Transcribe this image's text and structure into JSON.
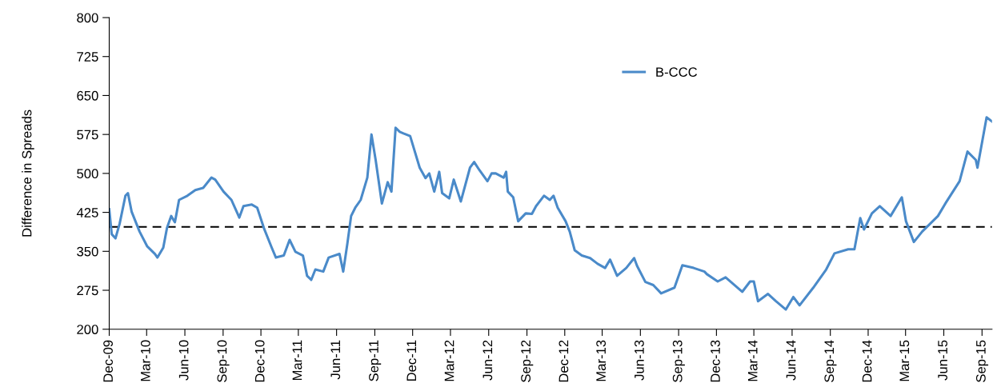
{
  "chart_data": {
    "type": "line",
    "ylabel": "Difference in Spreads",
    "legend": "top right",
    "grid": false,
    "marker": "none",
    "line_style": "solid",
    "ylim": [
      200,
      800
    ],
    "yticks": [
      200,
      275,
      350,
      425,
      500,
      575,
      650,
      725,
      800
    ],
    "xlim": [
      "2009-12-01",
      "2015-09-25"
    ],
    "xticks": [
      {
        "value": "2009-12-01",
        "label": "Dec-09"
      },
      {
        "value": "2010-03-01",
        "label": "Mar-10"
      },
      {
        "value": "2010-06-01",
        "label": "Jun-10"
      },
      {
        "value": "2010-09-01",
        "label": "Sep-10"
      },
      {
        "value": "2010-12-01",
        "label": "Dec-10"
      },
      {
        "value": "2011-03-01",
        "label": "Mar-11"
      },
      {
        "value": "2011-06-01",
        "label": "Jun-11"
      },
      {
        "value": "2011-09-01",
        "label": "Sep-11"
      },
      {
        "value": "2011-12-01",
        "label": "Dec-11"
      },
      {
        "value": "2012-03-01",
        "label": "Mar-12"
      },
      {
        "value": "2012-06-01",
        "label": "Jun-12"
      },
      {
        "value": "2012-09-01",
        "label": "Sep-12"
      },
      {
        "value": "2012-12-01",
        "label": "Dec-12"
      },
      {
        "value": "2013-03-01",
        "label": "Mar-13"
      },
      {
        "value": "2013-06-01",
        "label": "Jun-13"
      },
      {
        "value": "2013-09-01",
        "label": "Sep-13"
      },
      {
        "value": "2013-12-01",
        "label": "Dec-13"
      },
      {
        "value": "2014-03-01",
        "label": "Mar-14"
      },
      {
        "value": "2014-06-01",
        "label": "Jun-14"
      },
      {
        "value": "2014-09-01",
        "label": "Sep-14"
      },
      {
        "value": "2014-12-01",
        "label": "Dec-14"
      },
      {
        "value": "2015-03-01",
        "label": "Mar-15"
      },
      {
        "value": "2015-06-01",
        "label": "Jun-15"
      },
      {
        "value": "2015-09-01",
        "label": "Sep-15"
      }
    ],
    "ref_lines": [
      {
        "axis": "y",
        "value": 397,
        "label": null,
        "color": "#000000",
        "line_style": "dashed"
      }
    ],
    "series": [
      {
        "name": "B-CCC",
        "color": "#4a8ac9",
        "x": [
          "2009-12-01",
          "2009-12-07",
          "2009-12-16",
          "2009-12-26",
          "2010-01-09",
          "2010-01-15",
          "2010-01-24",
          "2010-02-12",
          "2010-03-02",
          "2010-03-21",
          "2010-03-27",
          "2010-04-10",
          "2010-04-19",
          "2010-04-29",
          "2010-05-08",
          "2010-05-18",
          "2010-06-07",
          "2010-06-26",
          "2010-07-15",
          "2010-08-04",
          "2010-08-13",
          "2010-09-02",
          "2010-09-21",
          "2010-10-10",
          "2010-10-20",
          "2010-11-09",
          "2010-11-22",
          "2010-12-08",
          "2010-12-27",
          "2011-01-06",
          "2011-01-25",
          "2011-02-08",
          "2011-02-22",
          "2011-03-12",
          "2011-03-22",
          "2011-04-01",
          "2011-04-11",
          "2011-04-30",
          "2011-05-13",
          "2011-06-08",
          "2011-06-17",
          "2011-06-27",
          "2011-07-06",
          "2011-07-16",
          "2011-07-29",
          "2011-08-14",
          "2011-08-24",
          "2011-09-03",
          "2011-09-18",
          "2011-10-02",
          "2011-10-11",
          "2011-10-21",
          "2011-10-31",
          "2011-11-09",
          "2011-11-25",
          "2011-12-18",
          "2012-01-01",
          "2012-01-10",
          "2012-01-22",
          "2012-02-03",
          "2012-02-10",
          "2012-02-27",
          "2012-03-09",
          "2012-03-26",
          "2012-04-17",
          "2012-04-27",
          "2012-05-10",
          "2012-05-29",
          "2012-06-08",
          "2012-06-18",
          "2012-07-07",
          "2012-07-13",
          "2012-07-17",
          "2012-07-30",
          "2012-08-11",
          "2012-08-29",
          "2012-09-13",
          "2012-09-23",
          "2012-10-12",
          "2012-10-26",
          "2012-11-04",
          "2012-11-14",
          "2012-12-03",
          "2012-12-13",
          "2012-12-25",
          "2013-01-11",
          "2013-01-31",
          "2013-02-18",
          "2013-03-08",
          "2013-03-20",
          "2013-04-06",
          "2013-04-28",
          "2013-05-17",
          "2013-05-24",
          "2013-06-13",
          "2013-07-02",
          "2013-07-21",
          "2013-08-22",
          "2013-09-10",
          "2013-10-07",
          "2013-11-02",
          "2013-11-08",
          "2013-12-04",
          "2013-12-23",
          "2014-02-01",
          "2014-02-20",
          "2014-03-01",
          "2014-03-11",
          "2014-04-04",
          "2014-04-23",
          "2014-05-17",
          "2014-06-04",
          "2014-06-19",
          "2014-07-22",
          "2014-08-22",
          "2014-09-11",
          "2014-10-14",
          "2014-10-29",
          "2014-11-12",
          "2014-11-21",
          "2014-12-10",
          "2014-12-29",
          "2015-01-24",
          "2015-02-20",
          "2015-03-02",
          "2015-03-21",
          "2015-04-10",
          "2015-04-29",
          "2015-05-18",
          "2015-06-07",
          "2015-07-09",
          "2015-07-28",
          "2015-08-17",
          "2015-08-21",
          "2015-09-12",
          "2015-09-25"
        ],
        "values": [
          431,
          383,
          375,
          403,
          457,
          462,
          426,
          388,
          360,
          345,
          338,
          357,
          395,
          418,
          406,
          449,
          457,
          468,
          472,
          492,
          488,
          465,
          449,
          415,
          437,
          440,
          434,
          395,
          357,
          338,
          342,
          372,
          349,
          342,
          303,
          295,
          315,
          311,
          338,
          345,
          311,
          365,
          418,
          434,
          449,
          492,
          575,
          526,
          442,
          483,
          465,
          588,
          580,
          577,
          572,
          511,
          491,
          500,
          465,
          503,
          462,
          452,
          488,
          446,
          511,
          522,
          506,
          485,
          500,
          500,
          492,
          503,
          465,
          454,
          408,
          423,
          422,
          437,
          457,
          449,
          457,
          434,
          408,
          388,
          352,
          342,
          337,
          326,
          318,
          334,
          303,
          318,
          337,
          322,
          291,
          285,
          269,
          280,
          323,
          318,
          311,
          306,
          292,
          300,
          272,
          292,
          292,
          254,
          268,
          254,
          238,
          262,
          246,
          280,
          315,
          346,
          354,
          354,
          414,
          392,
          423,
          437,
          418,
          454,
          408,
          368,
          388,
          403,
          418,
          445,
          485,
          542,
          526,
          511,
          608,
          600
        ]
      }
    ]
  }
}
